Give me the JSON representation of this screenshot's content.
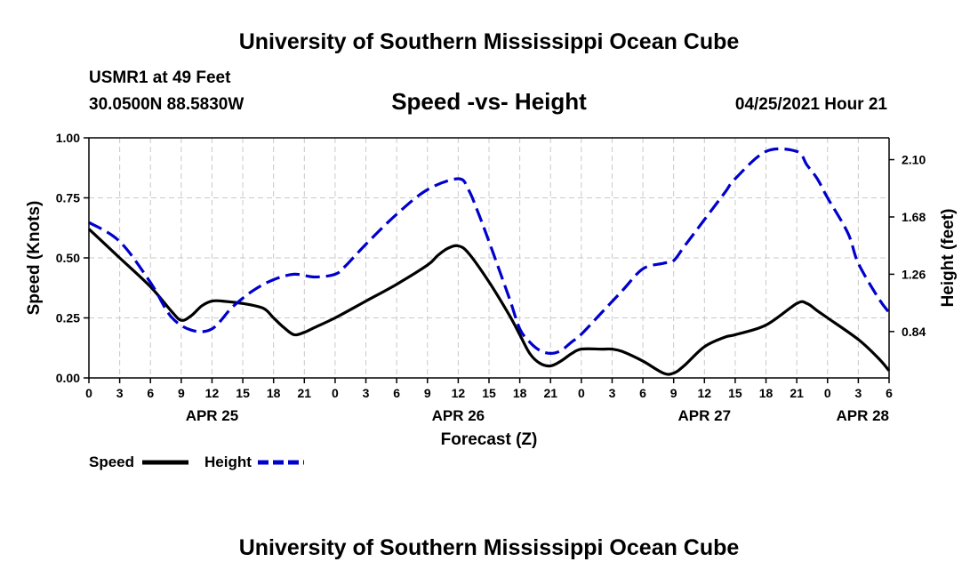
{
  "header": {
    "title": "University of Southern Mississippi Ocean Cube",
    "station": "USMR1 at 49 Feet",
    "coords": "30.0500N  88.5830W",
    "chart_title": "Speed -vs- Height",
    "datetime": "04/25/2021 Hour 21"
  },
  "footer": {
    "title": "University of Southern Mississippi Ocean Cube"
  },
  "legend": {
    "speed_label": "Speed",
    "height_label": "Height"
  },
  "colors": {
    "speed": "#000000",
    "height": "#0000cc",
    "grid": "#c8c8c8"
  },
  "chart_data": {
    "type": "line",
    "title": "Speed -vs- Height",
    "xlabel": "Forecast (Z)",
    "ylabel": "Speed (Knots)",
    "y2label": "Height (feet)",
    "xlim": [
      0,
      78
    ],
    "ylim": [
      0,
      1.0
    ],
    "y2lim": [
      0.5,
      2.26
    ],
    "x_ticks": [
      0,
      3,
      6,
      9,
      12,
      15,
      18,
      21,
      24,
      27,
      30,
      33,
      36,
      39,
      42,
      45,
      48,
      51,
      54,
      57,
      60,
      63,
      66,
      69,
      72,
      75,
      78
    ],
    "x_tick_labels": [
      "0",
      "3",
      "6",
      "9",
      "12",
      "15",
      "18",
      "21",
      "0",
      "3",
      "6",
      "9",
      "12",
      "15",
      "18",
      "21",
      "0",
      "3",
      "6",
      "9",
      "12",
      "15",
      "18",
      "21",
      "0",
      "3",
      "6"
    ],
    "y_ticks": [
      0,
      0.25,
      0.5,
      0.75,
      1.0
    ],
    "y_tick_labels": [
      "0.00",
      "0.25",
      "0.50",
      "0.75",
      "1.00"
    ],
    "y2_ticks": [
      0.84,
      1.26,
      1.68,
      2.1
    ],
    "y2_tick_labels": [
      "0.84",
      "1.26",
      "1.68",
      "2.10"
    ],
    "date_labels": [
      {
        "text": "APR 25",
        "x": 12
      },
      {
        "text": "APR 26",
        "x": 36
      },
      {
        "text": "APR 27",
        "x": 60
      },
      {
        "text": "APR 28",
        "x": 78
      }
    ],
    "grid": true,
    "legend_position": "bottom-left",
    "series": [
      {
        "name": "Speed",
        "axis": "left",
        "style": "solid",
        "x": [
          0,
          3,
          6,
          8,
          9,
          10,
          11,
          12,
          13,
          15,
          17,
          18,
          19,
          20,
          21,
          22,
          24,
          27,
          30,
          33,
          34,
          35,
          36,
          37,
          39,
          41,
          42,
          43,
          44,
          45,
          46,
          47,
          48,
          50,
          51,
          52,
          54,
          56,
          57,
          58,
          60,
          62,
          63,
          66,
          69,
          70,
          71,
          72,
          75,
          77,
          78
        ],
        "y": [
          0.62,
          0.5,
          0.38,
          0.28,
          0.24,
          0.26,
          0.3,
          0.32,
          0.32,
          0.31,
          0.29,
          0.25,
          0.21,
          0.18,
          0.19,
          0.21,
          0.25,
          0.32,
          0.39,
          0.47,
          0.51,
          0.54,
          0.55,
          0.52,
          0.4,
          0.26,
          0.18,
          0.1,
          0.06,
          0.05,
          0.07,
          0.1,
          0.12,
          0.12,
          0.12,
          0.11,
          0.07,
          0.02,
          0.02,
          0.05,
          0.13,
          0.17,
          0.18,
          0.22,
          0.31,
          0.31,
          0.28,
          0.25,
          0.16,
          0.08,
          0.03
        ]
      },
      {
        "name": "Height",
        "axis": "right",
        "style": "dashed",
        "x": [
          0,
          3,
          6,
          8,
          10,
          12,
          14,
          16,
          18,
          20,
          22,
          24,
          25,
          27,
          30,
          33,
          36,
          37,
          38,
          39,
          41,
          42,
          43,
          44,
          45,
          46,
          47,
          48,
          50,
          52,
          54,
          56,
          57,
          58,
          60,
          62,
          63,
          66,
          69,
          70,
          71,
          72,
          74,
          75,
          77,
          78
        ],
        "y": [
          1.64,
          1.5,
          1.2,
          0.95,
          0.85,
          0.86,
          1.02,
          1.14,
          1.22,
          1.26,
          1.24,
          1.26,
          1.32,
          1.48,
          1.7,
          1.88,
          1.96,
          1.88,
          1.7,
          1.5,
          1.08,
          0.86,
          0.76,
          0.7,
          0.68,
          0.7,
          0.76,
          0.82,
          0.98,
          1.14,
          1.3,
          1.34,
          1.36,
          1.46,
          1.66,
          1.86,
          1.96,
          2.16,
          2.16,
          2.06,
          1.96,
          1.82,
          1.56,
          1.34,
          1.08,
          0.98
        ]
      }
    ]
  }
}
